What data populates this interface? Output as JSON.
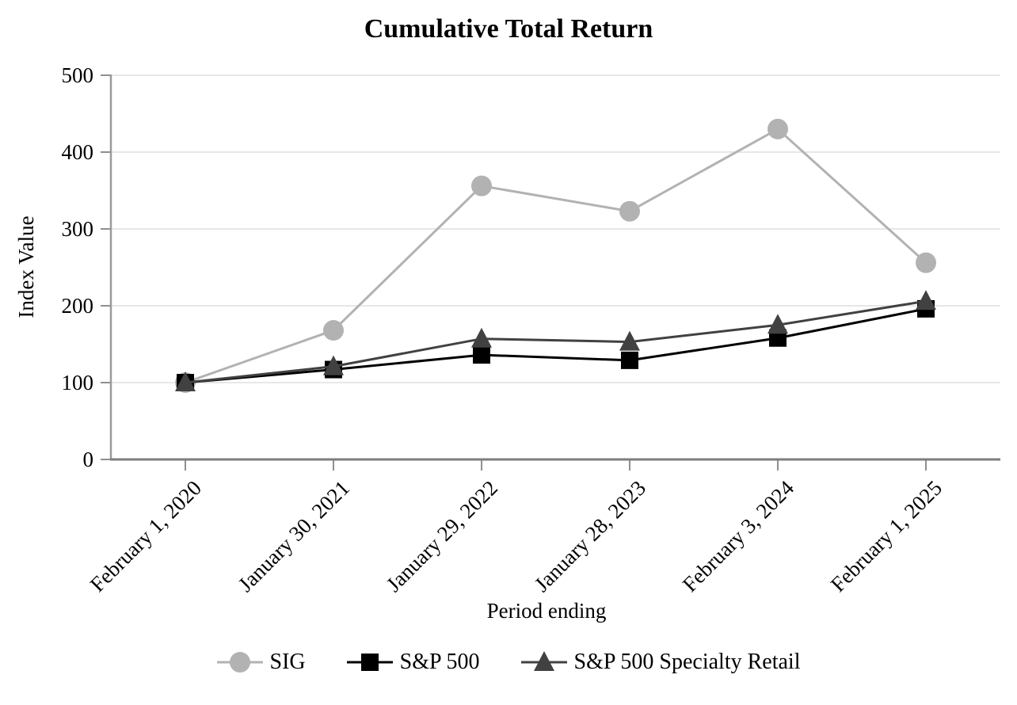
{
  "title": "Cumulative Total Return",
  "chart_data": {
    "type": "line",
    "title": "Cumulative Total Return",
    "xlabel": "Period ending",
    "ylabel": "Index Value",
    "x": [
      "February 1, 2020",
      "January 30, 2021",
      "January 29, 2022",
      "January 28, 2023",
      "February 3, 2024",
      "February 1, 2025"
    ],
    "series": [
      {
        "name": "SIG",
        "marker": "circle",
        "color": "#b2b2b2",
        "values": [
          100,
          168,
          356,
          323,
          430,
          256
        ]
      },
      {
        "name": "S&P 500",
        "marker": "square",
        "color": "#000000",
        "values": [
          100,
          117,
          136,
          129,
          158,
          196
        ]
      },
      {
        "name": "S&P 500 Specialty Retail",
        "marker": "triangle",
        "color": "#414141",
        "values": [
          100,
          121,
          157,
          153,
          175,
          206
        ]
      }
    ],
    "ylim": [
      0,
      500
    ],
    "yticks": [
      0,
      100,
      200,
      300,
      400,
      500
    ],
    "grid": "horizontal",
    "legend_position": "bottom"
  },
  "colors": {
    "background": "#ffffff",
    "gridline": "#e7e7e7",
    "y_axis": "#9a9a9a",
    "x_axis": "#7d7d7d",
    "tick": "#8f8f8f",
    "text": "#000000"
  }
}
